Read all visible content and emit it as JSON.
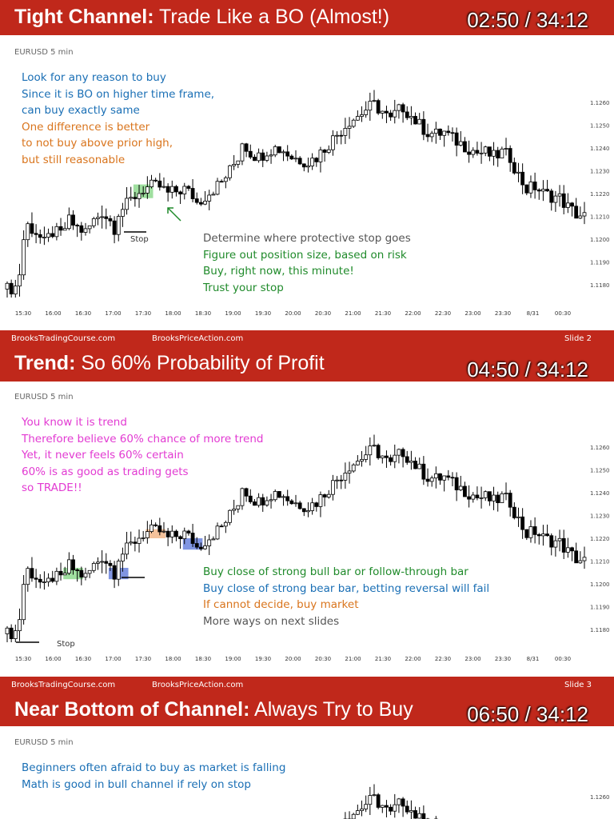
{
  "colors": {
    "red_bar": "#c0281b",
    "blue": "#1a6fb5",
    "orange": "#d9741c",
    "green": "#1f8a2a",
    "gray": "#555555",
    "magenta": "#e23ad2"
  },
  "footer": {
    "left": "BrooksTradingCourse.com",
    "mid": "BrooksPriceAction.com"
  },
  "slides": [
    {
      "title_bold": "Tight Channel:",
      "title_rest": " Trade Like a BO (Almost!)",
      "timer": "02:50 / 34:12",
      "symbol": "EURUSD 5 min",
      "notes_top": [
        {
          "text": "Look for any reason to buy",
          "color": "#1a6fb5"
        },
        {
          "text": "Since it is BO on higher time frame,",
          "color": "#1a6fb5"
        },
        {
          "text": "can buy exactly same",
          "color": "#1a6fb5"
        },
        {
          "text": "One difference is better",
          "color": "#d9741c"
        },
        {
          "text": "to not buy above prior high,",
          "color": "#d9741c"
        },
        {
          "text": "but still reasonable",
          "color": "#d9741c"
        }
      ],
      "notes_bottom": [
        {
          "text": "Determine where protective stop goes",
          "color": "#555555"
        },
        {
          "text": "Figure out position size, based on risk",
          "color": "#1f8a2a"
        },
        {
          "text": "Buy, right now, this minute!",
          "color": "#1f8a2a"
        },
        {
          "text": "Trust your stop",
          "color": "#1f8a2a"
        }
      ],
      "stop_label": "Stop",
      "slide_number": "Slide 2"
    },
    {
      "title_bold": "Trend:",
      "title_rest": " So 60% Probability of Profit",
      "timer": "04:50 / 34:12",
      "symbol": "EURUSD 5 min",
      "notes_top": [
        {
          "text": "You know it is trend",
          "color": "#e23ad2"
        },
        {
          "text": "Therefore believe 60% chance of more trend",
          "color": "#e23ad2"
        },
        {
          "text": "Yet, it never feels 60% certain",
          "color": "#e23ad2"
        },
        {
          "text": "60% is as good as trading gets",
          "color": "#e23ad2"
        },
        {
          "text": "so TRADE!!",
          "color": "#e23ad2"
        }
      ],
      "notes_bottom": [
        {
          "text": "Buy close of strong bull bar or follow-through bar",
          "color": "#1f8a2a"
        },
        {
          "text": "Buy close of strong bear bar, betting reversal will fail",
          "color": "#1a6fb5"
        },
        {
          "text": "If cannot decide, buy market",
          "color": "#d9741c"
        },
        {
          "text": "More ways on next slides",
          "color": "#555555"
        }
      ],
      "stop_label": "Stop",
      "slide_number": "Slide 3"
    },
    {
      "title_bold": "Near Bottom of Channel:",
      "title_rest": " Always Try to Buy",
      "timer": "06:50 / 34:12",
      "symbol": "EURUSD 5 min",
      "notes_top": [
        {
          "text": "Beginners often afraid to buy as market is falling",
          "color": "#1a6fb5"
        },
        {
          "text": "Math is good in bull channel if rely on stop",
          "color": "#1a6fb5"
        }
      ],
      "notes_bottom": [],
      "stop_label": "",
      "slide_number": ""
    }
  ],
  "chart_data": {
    "type": "candlestick",
    "instrument": "EURUSD",
    "timeframe": "5 min",
    "x_ticks": [
      "15:30",
      "16:00",
      "16:30",
      "17:00",
      "17:30",
      "18:00",
      "18:30",
      "19:00",
      "19:30",
      "20:00",
      "20:30",
      "21:00",
      "21:30",
      "22:00",
      "22:30",
      "23:00",
      "23:30",
      "8/31",
      "00:30"
    ],
    "y_ticks": [
      "1.1260",
      "1.1250",
      "1.1240",
      "1.1230",
      "1.1220",
      "1.1210",
      "1.1200",
      "1.1190",
      "1.1180"
    ],
    "ylim": [
      1.1175,
      1.1265
    ],
    "close_path": [
      [
        0,
        1.1178
      ],
      [
        2,
        1.1179
      ],
      [
        3,
        1.1185
      ],
      [
        4,
        1.12
      ],
      [
        5,
        1.1206
      ],
      [
        7,
        1.1203
      ],
      [
        9,
        1.1198
      ],
      [
        11,
        1.1203
      ],
      [
        13,
        1.1202
      ],
      [
        15,
        1.1208
      ],
      [
        17,
        1.1205
      ],
      [
        19,
        1.1203
      ],
      [
        21,
        1.1208
      ],
      [
        23,
        1.1212
      ],
      [
        25,
        1.1208
      ],
      [
        26,
        1.1205
      ],
      [
        27,
        1.1212
      ],
      [
        29,
        1.1215
      ],
      [
        31,
        1.1219
      ],
      [
        33,
        1.1222
      ],
      [
        35,
        1.1223
      ],
      [
        37,
        1.1223
      ],
      [
        39,
        1.122
      ],
      [
        41,
        1.1221
      ],
      [
        43,
        1.1222
      ],
      [
        45,
        1.1219
      ],
      [
        46,
        1.1216
      ],
      [
        48,
        1.1219
      ],
      [
        50,
        1.1222
      ],
      [
        52,
        1.1225
      ],
      [
        54,
        1.123
      ],
      [
        56,
        1.1236
      ],
      [
        57,
        1.1243
      ],
      [
        59,
        1.1238
      ],
      [
        61,
        1.1236
      ],
      [
        63,
        1.1239
      ],
      [
        65,
        1.124
      ],
      [
        67,
        1.1239
      ],
      [
        69,
        1.1236
      ],
      [
        71,
        1.1235
      ],
      [
        73,
        1.1234
      ],
      [
        75,
        1.1236
      ],
      [
        77,
        1.124
      ],
      [
        79,
        1.1244
      ],
      [
        81,
        1.1248
      ],
      [
        83,
        1.1252
      ],
      [
        85,
        1.1254
      ],
      [
        87,
        1.1257
      ],
      [
        89,
        1.1259
      ],
      [
        91,
        1.1256
      ],
      [
        93,
        1.1252
      ],
      [
        94,
        1.1255
      ],
      [
        96,
        1.1258
      ],
      [
        98,
        1.1254
      ],
      [
        100,
        1.125
      ],
      [
        102,
        1.1247
      ],
      [
        104,
        1.1246
      ],
      [
        106,
        1.1247
      ],
      [
        108,
        1.1244
      ],
      [
        110,
        1.1242
      ],
      [
        112,
        1.124
      ],
      [
        114,
        1.1238
      ],
      [
        116,
        1.1238
      ],
      [
        118,
        1.1236
      ],
      [
        120,
        1.1238
      ],
      [
        122,
        1.1236
      ],
      [
        124,
        1.1228
      ],
      [
        126,
        1.1222
      ],
      [
        128,
        1.1223
      ],
      [
        130,
        1.122
      ],
      [
        132,
        1.1219
      ],
      [
        134,
        1.1218
      ],
      [
        136,
        1.1214
      ],
      [
        138,
        1.1211
      ],
      [
        140,
        1.121
      ]
    ]
  }
}
